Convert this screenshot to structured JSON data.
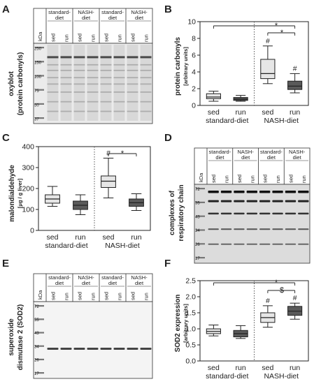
{
  "panels": {
    "A": {
      "label": "A",
      "ylabel1": "oxyblot",
      "ylabel2": "(protein carbonyls)",
      "kda": "kDa",
      "markers": [
        "250",
        "150",
        "100",
        "75",
        "50",
        "37"
      ]
    },
    "B": {
      "label": "B",
      "ylabel1": "protein carbonyls",
      "ylabel2": "[arbitrary units]",
      "yticks": [
        "0",
        "2",
        "4",
        "6",
        "8",
        "10"
      ]
    },
    "C": {
      "label": "C",
      "ylabel1": "malondialdehyde",
      "ylabel2": "[μg / g liver]",
      "yticks": [
        "0",
        "100",
        "200",
        "300",
        "400"
      ]
    },
    "D": {
      "label": "D",
      "ylabel1": "complexes of",
      "ylabel2": "respiratory chain",
      "kda": "kDa",
      "markers": [
        "72",
        "55",
        "43",
        "34",
        "26",
        "17"
      ]
    },
    "E": {
      "label": "E",
      "ylabel1": "superoxide",
      "ylabel2": "dismutase 2 (SOD2)",
      "kda": "kDa",
      "markers": [
        "72",
        "55",
        "43",
        "34",
        "26",
        "17"
      ]
    },
    "F": {
      "label": "F",
      "ylabel1": "SOD2 expression",
      "ylabel2": "[arbitrary units]",
      "yticks": [
        "0.0",
        "0.5",
        "1.0",
        "1.5",
        "2.0",
        "2.5"
      ]
    }
  },
  "lanes": {
    "groups": [
      "standard-\ndiet",
      "NASH-\ndiet",
      "standard-\ndiet",
      "NASH-\ndiet"
    ],
    "cols": [
      "sed",
      "run",
      "sed",
      "run",
      "sed",
      "run",
      "sed",
      "run"
    ]
  },
  "categories": {
    "sed": "sed",
    "run": "run",
    "standard": "standard-diet",
    "nash": "NASH-diet"
  },
  "annotations": {
    "star": "*",
    "hash": "#",
    "dollar": "$"
  },
  "chart_data": [
    {
      "type": "box",
      "panel": "B",
      "title": "",
      "ylabel": "protein carbonyls [arbitrary units]",
      "ylim": [
        0,
        10
      ],
      "categories": [
        "sed standard-diet",
        "run standard-diet",
        "sed NASH-diet",
        "run NASH-diet"
      ],
      "boxes": [
        {
          "min": 0.5,
          "q1": 0.8,
          "median": 1.0,
          "q3": 1.4,
          "max": 1.7,
          "color": "#e6e6e6"
        },
        {
          "min": 0.5,
          "q1": 0.6,
          "median": 0.75,
          "q3": 0.95,
          "max": 1.2,
          "color": "#5a5a5a"
        },
        {
          "min": 2.6,
          "q1": 3.2,
          "median": 3.8,
          "q3": 5.5,
          "max": 7.1,
          "color": "#e6e6e6"
        },
        {
          "min": 1.5,
          "q1": 1.9,
          "median": 2.3,
          "q3": 2.9,
          "max": 3.8,
          "color": "#5a5a5a"
        }
      ]
    },
    {
      "type": "box",
      "panel": "C",
      "title": "",
      "ylabel": "malondialdehyde [μg / g liver]",
      "ylim": [
        0,
        400
      ],
      "categories": [
        "sed standard-diet",
        "run standard-diet",
        "sed NASH-diet",
        "run NASH-diet"
      ],
      "boxes": [
        {
          "min": 115,
          "q1": 130,
          "median": 150,
          "q3": 170,
          "max": 210,
          "color": "#e6e6e6"
        },
        {
          "min": 75,
          "q1": 100,
          "median": 120,
          "q3": 140,
          "max": 170,
          "color": "#5a5a5a"
        },
        {
          "min": 155,
          "q1": 205,
          "median": 235,
          "q3": 260,
          "max": 345,
          "color": "#e6e6e6"
        },
        {
          "min": 95,
          "q1": 115,
          "median": 132,
          "q3": 150,
          "max": 175,
          "color": "#5a5a5a"
        }
      ]
    },
    {
      "type": "box",
      "panel": "F",
      "title": "",
      "ylabel": "SOD2 expression [arbitrary units]",
      "ylim": [
        0,
        2.5
      ],
      "categories": [
        "sed standard-diet",
        "run standard-diet",
        "sed NASH-diet",
        "run NASH-diet"
      ],
      "boxes": [
        {
          "min": 0.78,
          "q1": 0.85,
          "median": 0.92,
          "q3": 1.0,
          "max": 1.12,
          "color": "#e6e6e6"
        },
        {
          "min": 0.7,
          "q1": 0.75,
          "median": 0.85,
          "q3": 0.95,
          "max": 1.1,
          "color": "#5a5a5a"
        },
        {
          "min": 1.05,
          "q1": 1.2,
          "median": 1.35,
          "q3": 1.5,
          "max": 1.72,
          "color": "#e6e6e6"
        },
        {
          "min": 1.3,
          "q1": 1.42,
          "median": 1.55,
          "q3": 1.7,
          "max": 1.8,
          "color": "#5a5a5a"
        }
      ]
    }
  ]
}
